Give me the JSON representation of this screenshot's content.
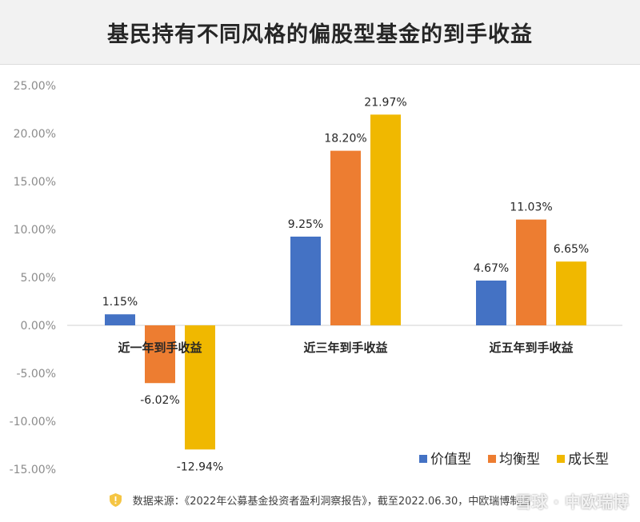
{
  "chart_data": {
    "type": "bar",
    "title": "基民持有不同风格的偏股型基金的到手收益",
    "categories": [
      "近一年到手收益",
      "近三年到手收益",
      "近五年到手收益"
    ],
    "series": [
      {
        "name": "价值型",
        "color": "#4472c4",
        "values": [
          1.15,
          9.25,
          4.67
        ],
        "labels": [
          "1.15%",
          "9.25%",
          "4.67%"
        ]
      },
      {
        "name": "均衡型",
        "color": "#ed7d31",
        "values": [
          -6.02,
          18.2,
          11.03
        ],
        "labels": [
          "-6.02%",
          "18.20%",
          "11.03%"
        ]
      },
      {
        "name": "成长型",
        "color": "#f0b800",
        "values": [
          -12.94,
          21.97,
          6.65
        ],
        "labels": [
          "-12.94%",
          "21.97%",
          "6.65%"
        ]
      }
    ],
    "yticks": [
      "25.00%",
      "20.00%",
      "15.00%",
      "10.00%",
      "5.00%",
      "0.00%",
      "-5.00%",
      "-10.00%",
      "-15.00%"
    ],
    "ylim": [
      -15,
      25
    ],
    "grid": false,
    "legend_position": "bottom-right"
  },
  "footer": {
    "source": "数据来源：《2022年公募基金投资者盈利洞察报告》，截至2022.06.30，中欧瑞博制图"
  },
  "watermark": "雪球 · 中欧瑞博"
}
